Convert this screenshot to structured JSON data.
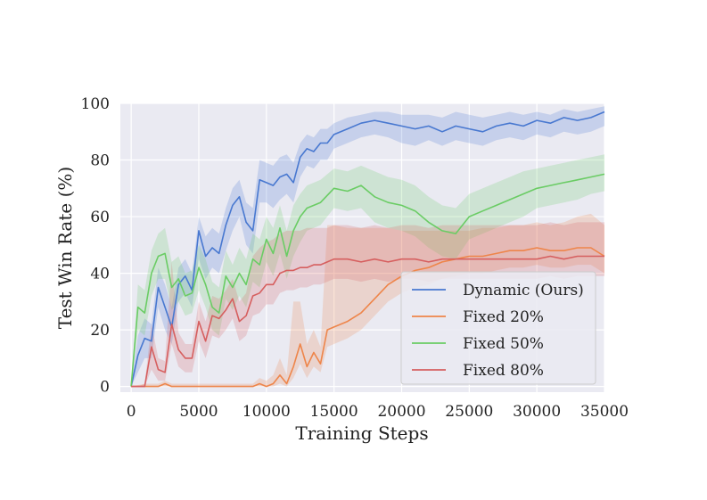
{
  "chart_data": {
    "type": "line",
    "title": "",
    "xlabel": "Training Steps",
    "ylabel": "Test Win Rate (%)",
    "xlim": [
      -800,
      35000
    ],
    "ylim": [
      -2,
      100
    ],
    "xticks": [
      0,
      5000,
      10000,
      15000,
      20000,
      25000,
      30000,
      35000
    ],
    "yticks": [
      0,
      20,
      40,
      60,
      80,
      100
    ],
    "grid": true,
    "legend_position": "bottom-right",
    "series": [
      {
        "name": "Dynamic (Ours)",
        "color": "#4878d0",
        "x": [
          0,
          500,
          1000,
          1500,
          2000,
          2500,
          3000,
          3500,
          4000,
          4500,
          5000,
          5500,
          6000,
          6500,
          7000,
          7500,
          8000,
          8500,
          9000,
          9500,
          10000,
          10500,
          11000,
          11500,
          12000,
          12500,
          13000,
          13500,
          14000,
          14500,
          15000,
          15500,
          16000,
          17000,
          18000,
          19000,
          20000,
          21000,
          22000,
          23000,
          24000,
          25000,
          26000,
          27000,
          28000,
          29000,
          30000,
          31000,
          32000,
          33000,
          34000,
          35000
        ],
        "values": [
          0,
          11,
          17,
          16,
          35,
          28,
          21,
          36,
          39,
          34,
          55,
          46,
          49,
          47,
          57,
          64,
          67,
          58,
          55,
          73,
          72,
          71,
          74,
          75,
          72,
          81,
          84,
          83,
          86,
          86,
          89,
          90,
          91,
          93,
          94,
          93,
          92,
          91,
          92,
          90,
          92,
          91,
          90,
          92,
          93,
          92,
          94,
          93,
          95,
          94,
          95,
          97
        ],
        "lower": [
          0,
          5,
          10,
          10,
          28,
          20,
          15,
          30,
          33,
          28,
          45,
          38,
          42,
          40,
          48,
          55,
          60,
          50,
          47,
          65,
          65,
          63,
          66,
          68,
          65,
          74,
          78,
          77,
          80,
          80,
          84,
          85,
          86,
          88,
          89,
          88,
          86,
          85,
          87,
          85,
          87,
          86,
          85,
          87,
          88,
          87,
          89,
          88,
          90,
          89,
          90,
          92
        ],
        "upper": [
          0,
          18,
          24,
          22,
          42,
          36,
          28,
          42,
          45,
          40,
          60,
          53,
          56,
          54,
          63,
          70,
          73,
          65,
          63,
          80,
          79,
          78,
          81,
          82,
          79,
          86,
          89,
          88,
          91,
          91,
          93,
          94,
          95,
          96,
          97,
          97,
          96,
          96,
          96,
          95,
          97,
          96,
          95,
          96,
          97,
          96,
          97,
          96,
          98,
          97,
          98,
          99
        ]
      },
      {
        "name": "Fixed 20%",
        "color": "#ee854a",
        "x": [
          0,
          1000,
          2000,
          2500,
          3000,
          4000,
          5000,
          6000,
          7000,
          8000,
          9000,
          9500,
          10000,
          10500,
          11000,
          11500,
          12000,
          12500,
          13000,
          13500,
          14000,
          14500,
          15000,
          16000,
          17000,
          18000,
          19000,
          20000,
          21000,
          22000,
          23000,
          24000,
          25000,
          26000,
          27000,
          28000,
          29000,
          30000,
          31000,
          32000,
          33000,
          34000,
          35000
        ],
        "values": [
          0,
          0,
          0,
          1,
          0,
          0,
          0,
          0,
          0,
          0,
          0,
          1,
          0,
          1,
          4,
          1,
          7,
          15,
          7,
          12,
          8,
          20,
          21,
          23,
          26,
          31,
          36,
          39,
          41,
          42,
          44,
          45,
          46,
          46,
          47,
          48,
          48,
          49,
          48,
          48,
          49,
          49,
          46
        ],
        "lower": [
          0,
          0,
          0,
          0,
          0,
          0,
          0,
          0,
          0,
          0,
          0,
          0,
          0,
          0,
          1,
          0,
          3,
          8,
          3,
          7,
          5,
          14,
          15,
          17,
          20,
          25,
          30,
          33,
          35,
          36,
          38,
          39,
          40,
          40,
          41,
          42,
          42,
          43,
          42,
          42,
          43,
          43,
          40
        ],
        "upper": [
          0,
          1,
          1,
          2,
          1,
          1,
          1,
          1,
          1,
          1,
          1,
          3,
          2,
          4,
          10,
          4,
          30,
          30,
          15,
          20,
          14,
          57,
          57,
          56,
          56,
          56,
          56,
          55,
          55,
          55,
          55,
          55,
          55,
          56,
          56,
          57,
          57,
          58,
          57,
          58,
          60,
          61,
          57
        ]
      },
      {
        "name": "Fixed 50%",
        "color": "#6acc64",
        "x": [
          0,
          500,
          1000,
          1500,
          2000,
          2500,
          3000,
          3500,
          4000,
          4500,
          5000,
          5500,
          6000,
          6500,
          7000,
          7500,
          8000,
          8500,
          9000,
          9500,
          10000,
          10500,
          11000,
          11500,
          12000,
          12500,
          13000,
          14000,
          15000,
          16000,
          17000,
          18000,
          19000,
          20000,
          21000,
          22000,
          23000,
          24000,
          25000,
          26000,
          27000,
          28000,
          29000,
          30000,
          31000,
          32000,
          33000,
          34000,
          35000
        ],
        "values": [
          0,
          28,
          26,
          40,
          46,
          47,
          35,
          38,
          32,
          33,
          42,
          36,
          28,
          26,
          39,
          35,
          40,
          36,
          45,
          43,
          52,
          47,
          56,
          46,
          55,
          60,
          63,
          65,
          70,
          69,
          71,
          67,
          65,
          64,
          62,
          58,
          55,
          54,
          60,
          62,
          64,
          66,
          68,
          70,
          71,
          72,
          73,
          74,
          75
        ],
        "lower": [
          0,
          20,
          18,
          32,
          38,
          38,
          27,
          30,
          25,
          26,
          34,
          28,
          20,
          18,
          31,
          27,
          32,
          28,
          37,
          35,
          44,
          39,
          47,
          38,
          46,
          51,
          55,
          57,
          63,
          62,
          63,
          58,
          56,
          55,
          53,
          49,
          46,
          45,
          52,
          54,
          56,
          58,
          60,
          63,
          64,
          65,
          66,
          68,
          69
        ],
        "upper": [
          0,
          36,
          34,
          48,
          54,
          56,
          44,
          46,
          40,
          41,
          50,
          45,
          37,
          35,
          48,
          43,
          49,
          45,
          54,
          52,
          60,
          56,
          64,
          55,
          64,
          68,
          71,
          73,
          77,
          76,
          78,
          76,
          74,
          73,
          71,
          67,
          64,
          63,
          68,
          70,
          72,
          74,
          76,
          77,
          78,
          79,
          80,
          81,
          82
        ]
      },
      {
        "name": "Fixed 80%",
        "color": "#d65f5f",
        "x": [
          0,
          500,
          1000,
          1500,
          2000,
          2500,
          3000,
          3500,
          4000,
          4500,
          5000,
          5500,
          6000,
          6500,
          7000,
          7500,
          8000,
          8500,
          9000,
          9500,
          10000,
          10500,
          11000,
          11500,
          12000,
          12500,
          13000,
          13500,
          14000,
          14500,
          15000,
          16000,
          17000,
          18000,
          19000,
          20000,
          21000,
          22000,
          23000,
          24000,
          25000,
          26000,
          27000,
          28000,
          29000,
          30000,
          31000,
          32000,
          33000,
          34000,
          35000
        ],
        "values": [
          0,
          0,
          0,
          14,
          6,
          5,
          22,
          13,
          10,
          10,
          23,
          16,
          25,
          24,
          27,
          31,
          23,
          25,
          32,
          33,
          36,
          36,
          40,
          41,
          41,
          42,
          42,
          43,
          43,
          44,
          45,
          45,
          44,
          45,
          44,
          45,
          45,
          44,
          45,
          45,
          45,
          45,
          45,
          45,
          45,
          45,
          46,
          45,
          46,
          46,
          46
        ],
        "lower": [
          0,
          0,
          0,
          6,
          2,
          2,
          15,
          7,
          5,
          5,
          16,
          10,
          18,
          17,
          20,
          24,
          16,
          18,
          25,
          26,
          29,
          29,
          33,
          34,
          34,
          35,
          35,
          36,
          36,
          37,
          38,
          38,
          37,
          38,
          37,
          38,
          38,
          37,
          38,
          38,
          38,
          38,
          38,
          38,
          38,
          38,
          39,
          38,
          39,
          39,
          39
        ],
        "upper": [
          0,
          0,
          1,
          22,
          10,
          9,
          44,
          19,
          15,
          15,
          30,
          23,
          32,
          31,
          34,
          38,
          30,
          33,
          46,
          49,
          51,
          52,
          54,
          55,
          55,
          55,
          56,
          56,
          56,
          56,
          57,
          57,
          56,
          57,
          56,
          57,
          57,
          56,
          57,
          57,
          57,
          57,
          57,
          57,
          57,
          57,
          58,
          57,
          58,
          58,
          58
        ]
      }
    ]
  }
}
